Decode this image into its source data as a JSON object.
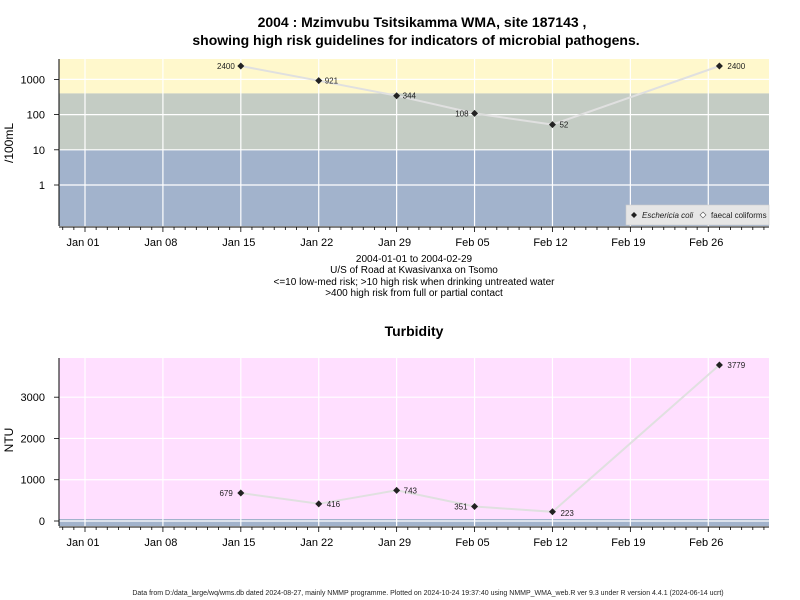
{
  "page": {
    "title_line1": "2004 : Mzimvubu Tsitsikamma WMA, site 187143 ,",
    "title_line2": "showing high risk guidelines for indicators of microbial pathogens.",
    "subtitle_lines": [
      "2004-01-01 to 2004-02-29",
      "U/S of Road at Kwasivanxa on Tsomo",
      "<=10 low-med risk; >10 high risk when drinking untreated water",
      ">400 high risk from full or partial contact"
    ],
    "footer": "Data from D:/data_large/wq/wms.db dated 2024-08-27, mainly NMMP programme. Plotted on 2024-10-24 19:37:40 using NMMP_WMA_web.R ver 9.3 under R version 4.4.1 (2024-06-14 ucrt)"
  },
  "chart_data": [
    {
      "type": "line",
      "ylabel": "/100mL",
      "yscale": "log",
      "yticks": [
        "1",
        "10",
        "100",
        "1000"
      ],
      "xticks": [
        "Jan 01",
        "Jan 08",
        "Jan 15",
        "Jan 22",
        "Jan 29",
        "Feb 05",
        "Feb 12",
        "Feb 19",
        "Feb 26"
      ],
      "x": [
        "2004-01-15",
        "2004-01-22",
        "2004-01-29",
        "2004-02-05",
        "2004-02-12",
        "2004-02-27"
      ],
      "series": [
        {
          "name": "Eschericia coli",
          "values": [
            2400,
            921,
            344,
            108,
            52,
            2400
          ],
          "labels": [
            "2400",
            "921",
            "344",
            "108",
            "52",
            "2400"
          ]
        }
      ],
      "legend": [
        "Eschericia coli",
        "faecal coliforms"
      ],
      "legend_position": "bottom-right",
      "bands": [
        {
          "label": ">400 high risk from full or partial contact",
          "from": 400,
          "color": "#fff8cc"
        },
        {
          "label": ">10 high risk when drinking untreated water",
          "from": 10,
          "to": 400,
          "color": "#c4ccc4"
        },
        {
          "label": "<=10 low-med risk",
          "to": 10,
          "color": "#a2b3cc"
        }
      ],
      "grid": true
    },
    {
      "type": "line",
      "title": "Turbidity",
      "ylabel": "NTU",
      "yticks": [
        "0",
        "1000",
        "2000",
        "3000"
      ],
      "xticks": [
        "Jan 01",
        "Jan 08",
        "Jan 15",
        "Jan 22",
        "Jan 29",
        "Feb 05",
        "Feb 12",
        "Feb 19",
        "Feb 26"
      ],
      "x": [
        "2004-01-15",
        "2004-01-22",
        "2004-01-29",
        "2004-02-05",
        "2004-02-12",
        "2004-02-27"
      ],
      "series": [
        {
          "values": [
            679,
            416,
            743,
            351,
            223,
            3779
          ],
          "labels": [
            "679",
            "416",
            "743",
            "351",
            "223",
            "3779"
          ]
        }
      ],
      "background_color": "#ffdfff",
      "grid": true
    }
  ]
}
